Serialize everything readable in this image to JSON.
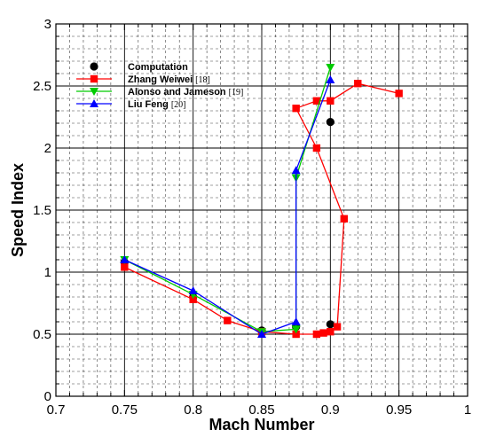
{
  "chart_data": {
    "type": "line",
    "title": "",
    "xlabel": "Mach Number",
    "ylabel": "Speed Index",
    "xlim": [
      0.7,
      1.0
    ],
    "ylim": [
      0,
      3
    ],
    "x_ticks": [
      "0.7",
      "0.75",
      "0.8",
      "0.85",
      "0.9",
      "0.95",
      "1"
    ],
    "y_ticks": [
      "0",
      "0.5",
      "1",
      "1.5",
      "2",
      "2.5",
      "3"
    ],
    "grid": true,
    "legend_position": "top-left",
    "series": [
      {
        "name": "Computation",
        "ref": "",
        "color": "#000000",
        "marker": "circle",
        "line": false,
        "points": [
          [
            0.75,
            1.08
          ],
          [
            0.8,
            0.8
          ],
          [
            0.85,
            0.53
          ],
          [
            0.875,
            0.56
          ],
          [
            0.9,
            0.58
          ],
          [
            0.9,
            2.21
          ]
        ]
      },
      {
        "name": "Zhang Weiwei",
        "ref": "[18]",
        "color": "#ff0000",
        "marker": "square",
        "line": true,
        "points": [
          [
            0.75,
            1.04
          ],
          [
            0.8,
            0.78
          ],
          [
            0.825,
            0.61
          ],
          [
            0.85,
            0.52
          ],
          [
            0.875,
            0.5
          ],
          [
            0.89,
            0.5
          ],
          [
            0.895,
            0.51
          ],
          [
            0.9,
            0.52
          ],
          [
            0.905,
            0.56
          ],
          [
            0.91,
            1.43
          ],
          [
            0.89,
            2.0
          ],
          [
            0.875,
            2.32
          ],
          [
            0.89,
            2.38
          ],
          [
            0.9,
            2.38
          ],
          [
            0.92,
            2.52
          ],
          [
            0.95,
            2.44
          ]
        ]
      },
      {
        "name": "Alonso and Jameson",
        "ref": "[19]",
        "color": "#00cc00",
        "marker": "triangle-down",
        "line": true,
        "points": [
          [
            0.75,
            1.1
          ],
          [
            0.8,
            0.82
          ],
          [
            0.85,
            0.52
          ],
          [
            0.875,
            0.54
          ],
          [
            0.875,
            1.76
          ],
          [
            0.9,
            2.65
          ]
        ]
      },
      {
        "name": "Liu Feng",
        "ref": "[20]",
        "color": "#0000ff",
        "marker": "triangle-up",
        "line": true,
        "points": [
          [
            0.75,
            1.1
          ],
          [
            0.8,
            0.85
          ],
          [
            0.85,
            0.5
          ],
          [
            0.875,
            0.6
          ],
          [
            0.875,
            1.82
          ],
          [
            0.9,
            2.55
          ]
        ]
      }
    ]
  }
}
